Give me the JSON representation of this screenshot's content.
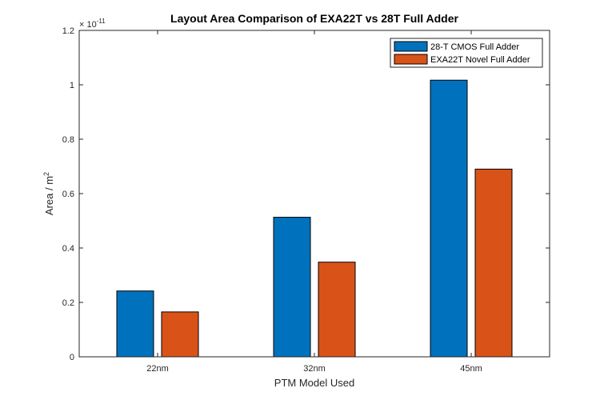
{
  "chart_data": {
    "type": "bar",
    "title": "Layout Area Comparison of EXA22T vs 28T Full Adder",
    "xlabel": "PTM Model Used",
    "ylabel": "Area / m",
    "ylabel_superscript": "2",
    "y_exponent_base": "× 10",
    "y_exponent_power": "-11",
    "categories": [
      "22nm",
      "32nm",
      "45nm"
    ],
    "series": [
      {
        "name": "28-T CMOS Full Adder",
        "color": "#0072BD",
        "values": [
          0.242,
          0.513,
          1.017
        ]
      },
      {
        "name": "EXA22T Novel Full Adder",
        "color": "#D95319",
        "values": [
          0.165,
          0.348,
          0.69
        ]
      }
    ],
    "ylim": [
      0,
      1.2
    ],
    "yticks": [
      0,
      0.2,
      0.4,
      0.6,
      0.8,
      1,
      1.2
    ],
    "ytick_labels": [
      "0",
      "0.2",
      "0.4",
      "0.6",
      "0.8",
      "1",
      "1.2"
    ],
    "grid": false,
    "legend_position": "top-right"
  }
}
